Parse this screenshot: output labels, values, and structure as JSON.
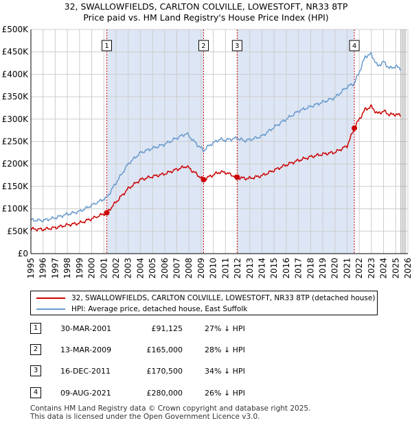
{
  "title_line1": "32, SWALLOWFIELDS, CARLTON COLVILLE, LOWESTOFT, NR33 8TP",
  "title_line2": "Price paid vs. HM Land Registry's House Price Index (HPI)",
  "colors": {
    "property": "#cc0000",
    "hpi": "#6699cc",
    "shade": "#dde6f5",
    "grid": "#cccccc"
  },
  "chart_data": {
    "type": "line",
    "xlim": [
      1995,
      2026
    ],
    "ylim": [
      0,
      500000
    ],
    "y_ticks": [
      0,
      50000,
      100000,
      150000,
      200000,
      250000,
      300000,
      350000,
      400000,
      450000,
      500000
    ],
    "y_tick_labels": [
      "£0",
      "£50K",
      "£100K",
      "£150K",
      "£200K",
      "£250K",
      "£300K",
      "£350K",
      "£400K",
      "£450K",
      "£500K"
    ],
    "x_ticks": [
      1995,
      1996,
      1997,
      1998,
      1999,
      2000,
      2001,
      2002,
      2003,
      2004,
      2005,
      2006,
      2007,
      2008,
      2009,
      2010,
      2011,
      2012,
      2013,
      2014,
      2015,
      2016,
      2017,
      2018,
      2019,
      2020,
      2021,
      2022,
      2023,
      2024,
      2025,
      2026
    ],
    "x_tick_labels": [
      "1995",
      "1996",
      "1997",
      "1998",
      "1999",
      "2000",
      "2001",
      "2002",
      "2003",
      "2004",
      "2005",
      "2006",
      "2007",
      "2008",
      "2009",
      "2010",
      "2011",
      "2012",
      "2013",
      "2014",
      "2015",
      "2016",
      "2017",
      "2018",
      "2019",
      "2020",
      "2021",
      "2022",
      "2023",
      "2024",
      "2025",
      "2026"
    ],
    "shaded_ranges": [
      [
        2001.24,
        2009.2
      ],
      [
        2011.96,
        2021.6
      ]
    ],
    "series": [
      {
        "name": "32, SWALLOWFIELDS, CARLTON COLVILLE, LOWESTOFT, NR33 8TP (detached house)",
        "x": [
          1995.0,
          1996.0,
          1997.0,
          1998.0,
          1999.0,
          2000.0,
          2001.24,
          2002.0,
          2003.0,
          2004.0,
          2005.0,
          2006.0,
          2007.0,
          2007.8,
          2008.5,
          2009.2,
          2009.7,
          2010.5,
          2011.0,
          2011.96,
          2012.5,
          2013.0,
          2014.0,
          2015.0,
          2016.0,
          2017.0,
          2018.0,
          2019.0,
          2020.0,
          2021.0,
          2021.6,
          2022.0,
          2022.5,
          2023.0,
          2023.5,
          2024.0,
          2024.5,
          2025.0,
          2025.4
        ],
        "y": [
          55000,
          54000,
          58000,
          64000,
          68000,
          78000,
          91125,
          115000,
          145000,
          165000,
          172000,
          178000,
          188000,
          195000,
          180000,
          165000,
          172000,
          182000,
          181000,
          170500,
          168000,
          168000,
          174000,
          186000,
          198000,
          208000,
          216000,
          222000,
          226000,
          240000,
          280000,
          300000,
          322000,
          328000,
          312000,
          318000,
          310000,
          311000,
          308000
        ]
      },
      {
        "name": "HPI: Average price, detached house, East Suffolk",
        "x": [
          1995.0,
          1996.0,
          1997.0,
          1998.0,
          1999.0,
          2000.0,
          2001.24,
          2002.0,
          2003.0,
          2004.0,
          2005.0,
          2006.0,
          2007.0,
          2007.8,
          2008.5,
          2009.2,
          2009.7,
          2010.5,
          2011.0,
          2011.96,
          2012.5,
          2013.0,
          2014.0,
          2015.0,
          2016.0,
          2017.0,
          2018.0,
          2019.0,
          2020.0,
          2021.0,
          2021.6,
          2022.0,
          2022.5,
          2023.0,
          2023.5,
          2024.0,
          2024.5,
          2025.0,
          2025.4
        ],
        "y": [
          75000,
          74000,
          80000,
          88000,
          94000,
          108000,
          125000,
          158000,
          200000,
          225000,
          235000,
          244000,
          258000,
          268000,
          248000,
          230000,
          242000,
          255000,
          253000,
          258000,
          252000,
          254000,
          262000,
          282000,
          300000,
          318000,
          328000,
          338000,
          348000,
          372000,
          380000,
          405000,
          440000,
          445000,
          418000,
          428000,
          413000,
          418000,
          412000
        ]
      }
    ],
    "sale_markers": [
      {
        "label": "1",
        "x": 2001.24,
        "y": 91125
      },
      {
        "label": "2",
        "x": 2009.2,
        "y": 165000
      },
      {
        "label": "3",
        "x": 2011.96,
        "y": 170500
      },
      {
        "label": "4",
        "x": 2021.6,
        "y": 280000
      }
    ]
  },
  "legend": {
    "property_label": "32, SWALLOWFIELDS, CARLTON COLVILLE, LOWESTOFT, NR33 8TP (detached house)",
    "hpi_label": "HPI: Average price, detached house, East Suffolk"
  },
  "sales": [
    {
      "num": "1",
      "date": "30-MAR-2001",
      "price": "£91,125",
      "hpi": "27% ↓ HPI"
    },
    {
      "num": "2",
      "date": "13-MAR-2009",
      "price": "£165,000",
      "hpi": "28% ↓ HPI"
    },
    {
      "num": "3",
      "date": "16-DEC-2011",
      "price": "£170,500",
      "hpi": "34% ↓ HPI"
    },
    {
      "num": "4",
      "date": "09-AUG-2021",
      "price": "£280,000",
      "hpi": "26% ↓ HPI"
    }
  ],
  "footer_line1": "Contains HM Land Registry data © Crown copyright and database right 2025.",
  "footer_line2": "This data is licensed under the Open Government Licence v3.0."
}
